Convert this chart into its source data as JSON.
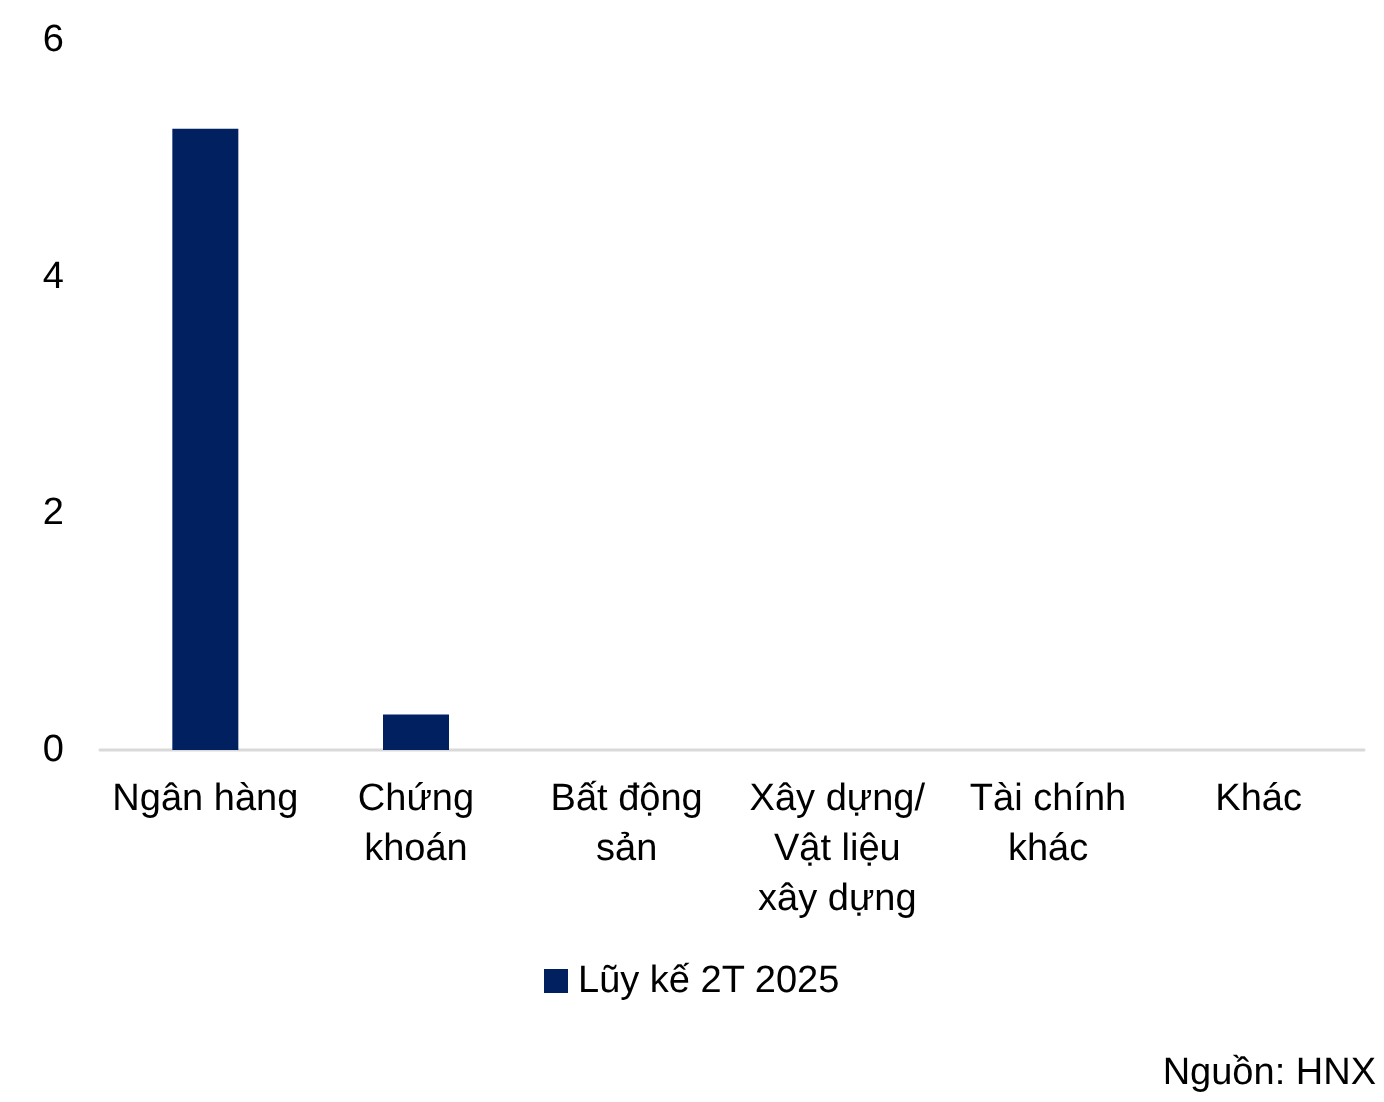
{
  "chart_data": {
    "type": "bar",
    "categories": [
      "Ngân hàng",
      "Chứng khoán",
      "Bất động sản",
      "Xây dựng/ Vật liệu xây dựng",
      "Tài chính khác",
      "Khác"
    ],
    "series": [
      {
        "name": "Lũy kế 2T 2025",
        "color": "#002060",
        "values": [
          5.25,
          0.3,
          0,
          0,
          0,
          0
        ]
      }
    ],
    "ylim": [
      0,
      6
    ],
    "yticks": [
      0,
      2,
      4,
      6
    ],
    "legend": "bottom",
    "annotations": [
      "Nguồn: HNX"
    ]
  }
}
